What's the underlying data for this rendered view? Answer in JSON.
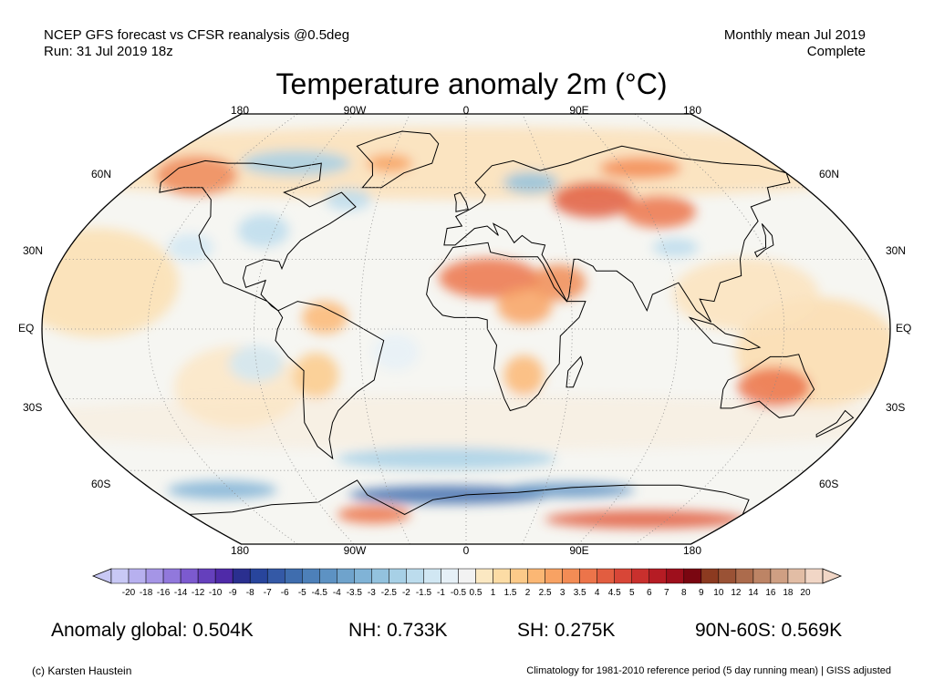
{
  "header": {
    "line1_left": "NCEP GFS forecast vs CFSR reanalysis @0.5deg",
    "line2_left": "Run: 31 Jul 2019 18z",
    "line1_right": "Monthly mean Jul 2019",
    "line2_right": "Complete"
  },
  "title": "Temperature anomaly 2m (°C)",
  "map": {
    "projection": "Robinson",
    "lon_labels_top": [
      "180",
      "90W",
      "0",
      "90E",
      "180"
    ],
    "lon_labels_bottom": [
      "180",
      "90W",
      "0",
      "90E",
      "180"
    ],
    "lat_labels_left": [
      "60N",
      "30N",
      "EQ",
      "30S",
      "60S"
    ],
    "lat_labels_right": [
      "60N",
      "30N",
      "EQ",
      "30S",
      "60S"
    ]
  },
  "colorbar": {
    "labels": [
      "-20",
      "-18",
      "-16",
      "-14",
      "-12",
      "-10",
      "-9",
      "-8",
      "-7",
      "-6",
      "-5",
      "-4.5",
      "-4",
      "-3.5",
      "-3",
      "-2.5",
      "-2",
      "-1.5",
      "-1",
      "-0.5",
      "0.5",
      "1",
      "1.5",
      "2",
      "2.5",
      "3",
      "3.5",
      "4",
      "4.5",
      "5",
      "6",
      "7",
      "8",
      "9",
      "10",
      "12",
      "14",
      "16",
      "18",
      "20"
    ],
    "colors": [
      "#c8c8f5",
      "#b7b0ef",
      "#a595e6",
      "#9178dc",
      "#7c5acf",
      "#6540bc",
      "#4f2aa8",
      "#2a2f8f",
      "#28459c",
      "#3459a6",
      "#3f6dae",
      "#4d80b9",
      "#5d92c3",
      "#6fa3cc",
      "#80b3d6",
      "#93c2de",
      "#a7d0e6",
      "#bcdced",
      "#d1e7f3",
      "#e6f0f7",
      "#f2f2f2",
      "#fbe8c2",
      "#fcdca5",
      "#fcca89",
      "#fbb774",
      "#f8a263",
      "#f38c55",
      "#ec744a",
      "#e25d40",
      "#d84637",
      "#c9302d",
      "#b61c24",
      "#9e0f1c",
      "#7a0611",
      "#8c3a20",
      "#9a5235",
      "#ac6b4c",
      "#bd8465",
      "#cf9f83",
      "#e2bda5",
      "#f1d6c6"
    ]
  },
  "stats": {
    "global": "Anomaly global: 0.504K",
    "nh": "NH: 0.733K",
    "sh": "SH: 0.275K",
    "arctic": "90N-60S: 0.569K"
  },
  "footer": {
    "left": "(c) Karsten Haustein",
    "right": "Climatology for 1981-2010 reference period (5 day running mean) | GISS adjusted"
  }
}
